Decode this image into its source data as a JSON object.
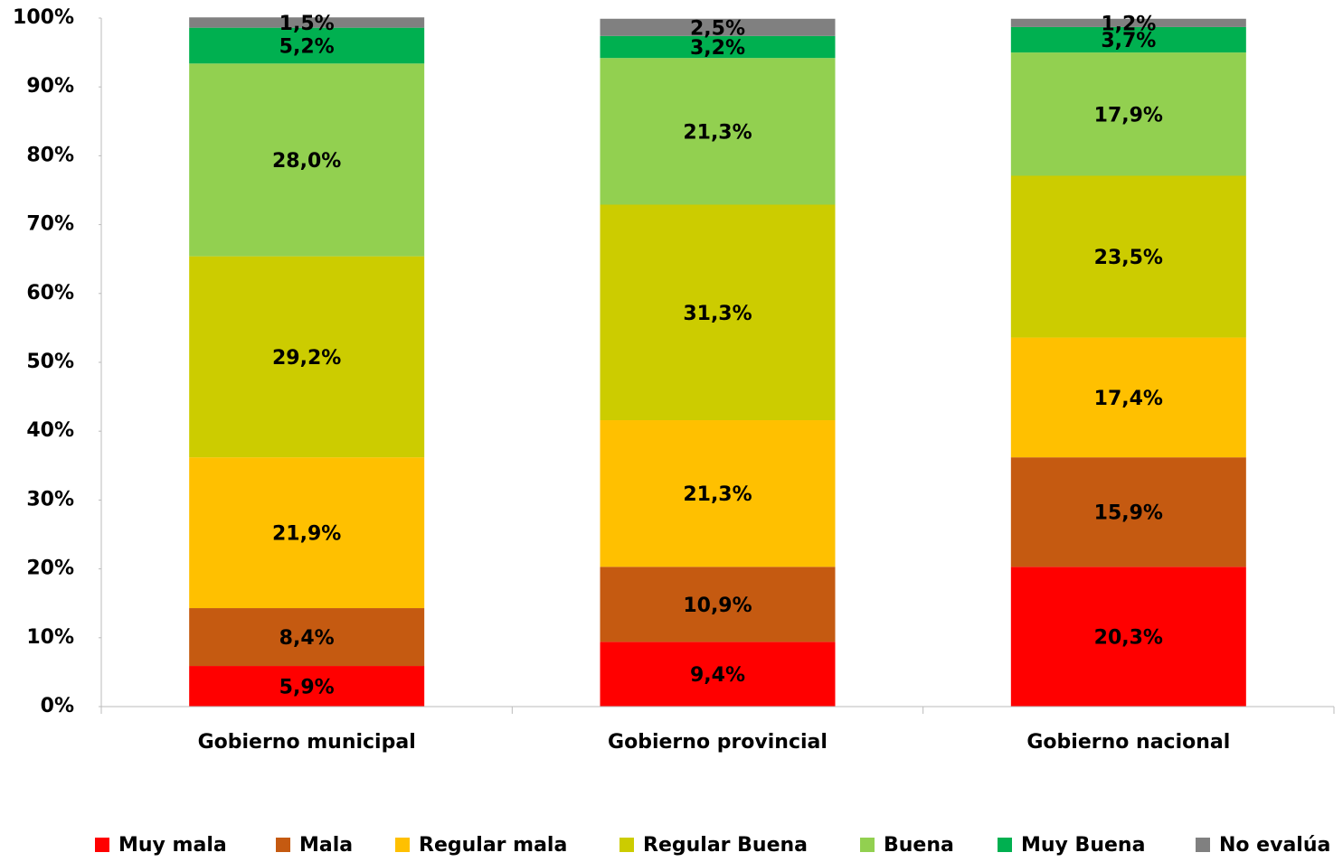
{
  "chart_data": {
    "type": "stacked_bar",
    "categories": [
      "Gobierno municipal",
      "Gobierno provincial",
      "Gobierno nacional"
    ],
    "series": [
      {
        "name": "Muy mala",
        "color": "#ff0000",
        "values": [
          5.9,
          9.4,
          20.3
        ],
        "value_labels": [
          "5,9%",
          "9,4%",
          "20,3%"
        ]
      },
      {
        "name": "Mala",
        "color": "#c55a11",
        "values": [
          8.4,
          10.9,
          15.9
        ],
        "value_labels": [
          "8,4%",
          "10,9%",
          "15,9%"
        ]
      },
      {
        "name": "Regular mala",
        "color": "#ffc000",
        "values": [
          21.9,
          21.3,
          17.4
        ],
        "value_labels": [
          "21,9%",
          "21,3%",
          "17,4%"
        ]
      },
      {
        "name": "Regular Buena",
        "color": "#cccc00",
        "values": [
          29.2,
          31.3,
          23.5
        ],
        "value_labels": [
          "29,2%",
          "31,3%",
          "23,5%"
        ]
      },
      {
        "name": "Buena",
        "color": "#92d050",
        "values": [
          28.0,
          21.3,
          17.9
        ],
        "value_labels": [
          "28,0%",
          "21,3%",
          "17,9%"
        ]
      },
      {
        "name": "Muy Buena",
        "color": "#00b050",
        "values": [
          5.2,
          3.2,
          3.7
        ],
        "value_labels": [
          "5,2%",
          "3,2%",
          "3,7%"
        ]
      },
      {
        "name": "No evalúa",
        "color": "#808080",
        "values": [
          1.5,
          2.5,
          1.2
        ],
        "value_labels": [
          "1,5%",
          "2,5%",
          "1,2%"
        ]
      }
    ],
    "ylim": [
      0,
      100
    ],
    "yticks": [
      {
        "value": 0,
        "label": "0%"
      },
      {
        "value": 10,
        "label": "10%"
      },
      {
        "value": 20,
        "label": "20%"
      },
      {
        "value": 30,
        "label": "30%"
      },
      {
        "value": 40,
        "label": "40%"
      },
      {
        "value": 50,
        "label": "50%"
      },
      {
        "value": 60,
        "label": "60%"
      },
      {
        "value": 70,
        "label": "70%"
      },
      {
        "value": 80,
        "label": "80%"
      },
      {
        "value": 90,
        "label": "90%"
      },
      {
        "value": 100,
        "label": "100%"
      }
    ],
    "legend": "bottom",
    "grid": false
  }
}
